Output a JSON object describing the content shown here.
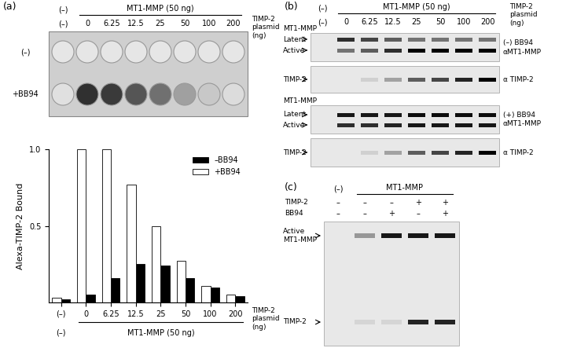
{
  "plate": {
    "label": "(a)",
    "header": [
      "(–)",
      "MT1-MMP (50 ng)"
    ],
    "columns": [
      "(–)",
      "0",
      "6.25",
      "12.5",
      "25",
      "50",
      "100",
      "200"
    ],
    "columns_title": "TIMP-2 plasmid (ng)",
    "rows": [
      "(–)",
      "+BB94"
    ]
  },
  "chart_data": {
    "type": "bar",
    "y_label": "Alexa-TIMP-2 Bound",
    "x_label": "TIMP-2 plasmid (ng)",
    "annotations": [
      "(–)",
      "MT1-MMP (50 ng)"
    ],
    "categories": [
      "(–)",
      "0",
      "6.25",
      "12.5",
      "25",
      "50",
      "100",
      "200"
    ],
    "series": [
      {
        "name": "–BB94",
        "color": "#000000",
        "values": [
          0.02,
          0.05,
          0.16,
          0.25,
          0.24,
          0.16,
          0.1,
          0.04
        ]
      },
      {
        "name": "+BB94",
        "color": "#ffffff",
        "values": [
          0.03,
          1.0,
          1.0,
          0.77,
          0.5,
          0.27,
          0.11,
          0.05
        ]
      }
    ],
    "ylim": [
      0,
      1.0
    ],
    "yticks": [
      0.5,
      {
        "value": 1,
        "label": "1.0"
      }
    ],
    "legend": "upper right",
    "grid": false
  },
  "panel_b": {
    "label": "(b)",
    "header": [
      "(–)",
      "MT1-MMP (50 ng)"
    ],
    "lanes": [
      "(–)",
      "0",
      "6.25",
      "12.5",
      "25",
      "50",
      "100",
      "200"
    ],
    "lanes_title": "TIMP-2 plasmid (ng)",
    "blots": [
      {
        "name": "MT1-MMP",
        "bands": [
          "Latent",
          "Active"
        ],
        "condition": "(–) BB94",
        "antibody": "αMT1-MMP"
      },
      {
        "name": "TIMP-2",
        "antibody": "α TIMP-2"
      },
      {
        "name": "MT1-MMP",
        "bands": [
          "Latent",
          "Active"
        ],
        "condition": "(+) BB94",
        "antibody": "αMT1-MMP"
      },
      {
        "name": "TIMP-2",
        "antibody": "α TIMP-2"
      }
    ]
  },
  "panel_c": {
    "label": "(c)",
    "header": [
      "(–)",
      "MT1-MMP"
    ],
    "rows": [
      {
        "name": "TIMP-2",
        "signs": [
          "–",
          "–",
          "–",
          "+",
          "+"
        ]
      },
      {
        "name": "BB94",
        "signs": [
          "–",
          "–",
          "+",
          "–",
          "+"
        ]
      }
    ],
    "bands": [
      "Active MT1-MMP",
      "TIMP-2"
    ]
  }
}
